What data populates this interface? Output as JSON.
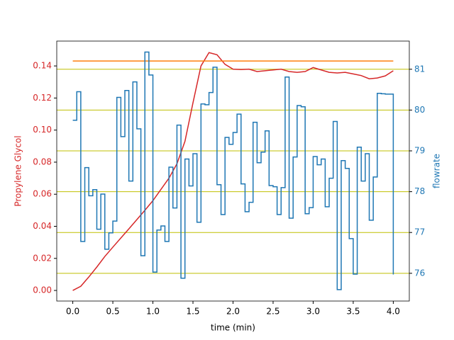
{
  "chart_data": {
    "type": "line",
    "xlabel": "time (min)",
    "ylabel": "Propylene Glycol",
    "y2label": "flowrate",
    "ylabel_color": "#d62728",
    "y2label_color": "#1f77b4",
    "xlim": [
      -0.2,
      4.2
    ],
    "ylim": [
      -0.0066,
      0.1555
    ],
    "y2lim": [
      75.32,
      81.69
    ],
    "xticks": [
      {
        "value": 0,
        "label": "0.0"
      },
      {
        "value": 0.5,
        "label": "0.5"
      },
      {
        "value": 1,
        "label": "1.0"
      },
      {
        "value": 1.5,
        "label": "1.5"
      },
      {
        "value": 2,
        "label": "2.0"
      },
      {
        "value": 2.5,
        "label": "2.5"
      },
      {
        "value": 3,
        "label": "3.0"
      },
      {
        "value": 3.5,
        "label": "3.5"
      },
      {
        "value": 4,
        "label": "4.0"
      }
    ],
    "yticks": [
      {
        "value": 0,
        "label": "0.00"
      },
      {
        "value": 0.02,
        "label": "0.02"
      },
      {
        "value": 0.04,
        "label": "0.04"
      },
      {
        "value": 0.06,
        "label": "0.06"
      },
      {
        "value": 0.08,
        "label": "0.08"
      },
      {
        "value": 0.1,
        "label": "0.10"
      },
      {
        "value": 0.12,
        "label": "0.12"
      },
      {
        "value": 0.14,
        "label": "0.14"
      }
    ],
    "y2ticks": [
      76,
      77,
      78,
      79,
      80,
      81
    ],
    "grid": "y2",
    "grid_color": "#bfbf00",
    "series": [
      {
        "color": "#d62728",
        "axis": "y",
        "x": [
          0,
          0.1,
          0.2,
          0.3,
          0.4,
          0.5,
          0.6,
          0.7,
          0.8,
          0.9,
          1.0,
          1.1,
          1.2,
          1.3,
          1.4,
          1.5,
          1.6,
          1.7,
          1.8,
          1.9,
          2.0,
          2.1,
          2.2,
          2.3,
          2.4,
          2.5,
          2.6,
          2.7,
          2.8,
          2.9,
          3.0,
          3.1,
          3.2,
          3.3,
          3.4,
          3.5,
          3.6,
          3.7,
          3.8,
          3.9,
          4.0
        ],
        "values": [
          0,
          0.0026,
          0.0084,
          0.0146,
          0.0212,
          0.027,
          0.0327,
          0.0384,
          0.0442,
          0.05,
          0.056,
          0.063,
          0.07,
          0.079,
          0.093,
          0.117,
          0.14,
          0.1483,
          0.147,
          0.141,
          0.138,
          0.1378,
          0.138,
          0.1365,
          0.137,
          0.1375,
          0.138,
          0.1365,
          0.136,
          0.1365,
          0.139,
          0.1375,
          0.136,
          0.1356,
          0.136,
          0.135,
          0.134,
          0.132,
          0.1325,
          0.1338,
          0.137
        ]
      },
      {
        "color": "#ff7f0e",
        "axis": "y",
        "x": [
          0,
          4.0
        ],
        "values": [
          0.1431,
          0.1431
        ]
      },
      {
        "color": "#1f77b4",
        "axis": "y2",
        "step": true,
        "x": [
          0,
          0.05,
          0.1,
          0.15,
          0.2,
          0.25,
          0.3,
          0.35,
          0.4,
          0.45,
          0.5,
          0.55,
          0.6,
          0.65,
          0.7,
          0.75,
          0.8,
          0.85,
          0.9,
          0.95,
          1.0,
          1.05,
          1.1,
          1.15,
          1.2,
          1.25,
          1.3,
          1.35,
          1.4,
          1.45,
          1.5,
          1.55,
          1.6,
          1.65,
          1.7,
          1.75,
          1.8,
          1.85,
          1.9,
          1.95,
          2.0,
          2.05,
          2.1,
          2.15,
          2.2,
          2.25,
          2.3,
          2.35,
          2.4,
          2.45,
          2.5,
          2.55,
          2.6,
          2.65,
          2.7,
          2.75,
          2.8,
          2.85,
          2.9,
          2.95,
          3.0,
          3.05,
          3.1,
          3.15,
          3.2,
          3.25,
          3.3,
          3.35,
          3.4,
          3.45,
          3.5,
          3.55,
          3.6,
          3.65,
          3.7,
          3.75,
          3.8,
          3.85,
          3.9,
          3.95,
          4.0
        ],
        "values": [
          79.75,
          80.45,
          76.78,
          78.59,
          77.9,
          78.05,
          77.08,
          77.94,
          76.59,
          76.99,
          77.28,
          80.31,
          79.35,
          80.48,
          78.26,
          80.69,
          79.54,
          76.43,
          81.42,
          80.86,
          76.03,
          77.06,
          77.16,
          76.78,
          78.6,
          77.6,
          79.63,
          75.88,
          78.8,
          78.14,
          78.93,
          77.25,
          80.15,
          80.13,
          80.43,
          81.05,
          78.17,
          77.44,
          79.33,
          79.16,
          79.45,
          79.9,
          78.19,
          77.51,
          77.74,
          79.7,
          78.71,
          78.97,
          79.49,
          78.15,
          78.12,
          77.44,
          78.1,
          80.81,
          77.35,
          78.85,
          80.11,
          80.08,
          77.46,
          77.61,
          78.86,
          78.66,
          78.8,
          77.63,
          78.33,
          79.72,
          75.6,
          78.76,
          78.57,
          76.85,
          75.98,
          79.09,
          78.26,
          78.93,
          77.3,
          78.36,
          80.41,
          80.4,
          80.39,
          80.39,
          75.97
        ]
      }
    ]
  }
}
